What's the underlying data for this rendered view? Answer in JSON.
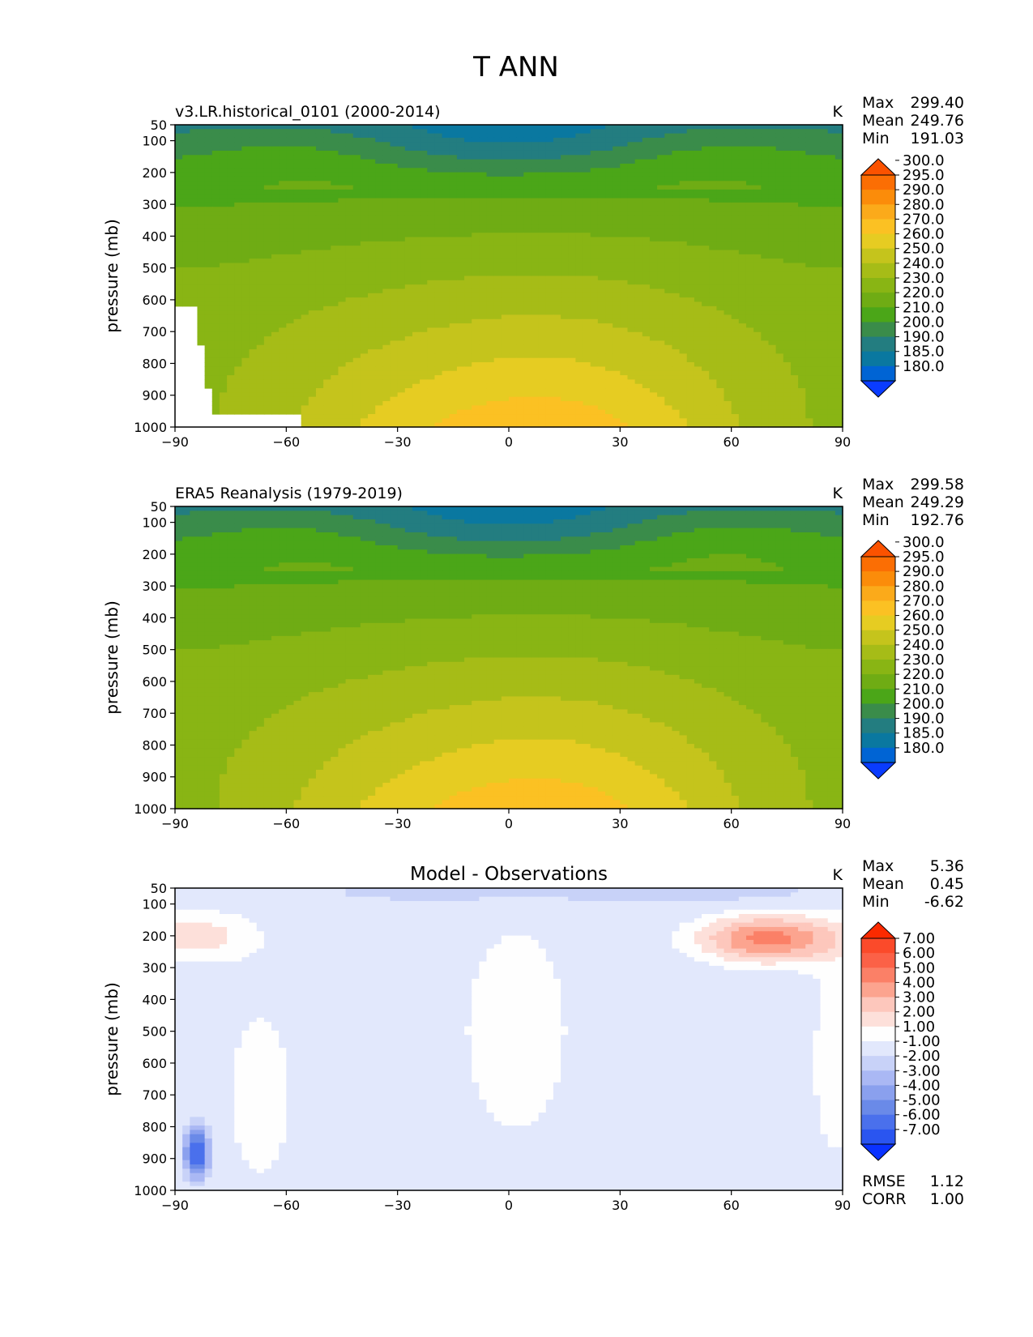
{
  "figure": {
    "title": "T ANN"
  },
  "chart_data": [
    {
      "type": "contour",
      "title": "v3.LR.historical_0101 (2000-2014)",
      "units": "K",
      "xlabel": "",
      "ylabel": "pressure (mb)",
      "xlim": [
        -90,
        90
      ],
      "ylim": [
        1000,
        50
      ],
      "xticks": [
        "−90",
        "−60",
        "−30",
        "0",
        "30",
        "60",
        "90"
      ],
      "yticks": [
        "50",
        "100",
        "200",
        "300",
        "400",
        "500",
        "600",
        "700",
        "800",
        "900",
        "1000"
      ],
      "stats": {
        "max_label": "Max",
        "max": "299.40",
        "mean_label": "Mean",
        "mean": "249.76",
        "min_label": "Min",
        "min": "191.03"
      },
      "field": {
        "kind": "temperature",
        "peak": 299.4,
        "min": 191.03,
        "missing_topography": true
      },
      "colorbar": {
        "levels": [
          180,
          185,
          190,
          200,
          210,
          220,
          230,
          240,
          250,
          260,
          270,
          280,
          290,
          295,
          300
        ],
        "labels": [
          "180.0",
          "185.0",
          "190.0",
          "200.0",
          "210.0",
          "220.0",
          "230.0",
          "240.0",
          "250.0",
          "260.0",
          "270.0",
          "280.0",
          "290.0",
          "295.0",
          "300.0"
        ],
        "colors": [
          "#0a3cff",
          "#0064d4",
          "#0a78a0",
          "#237d80",
          "#3a8c4a",
          "#4ba618",
          "#6fac14",
          "#89b514",
          "#a6bc17",
          "#c5c41c",
          "#e6cc22",
          "#fbc123",
          "#fbaa1a",
          "#fb8c0a",
          "#fb6e04",
          "#fb5200"
        ],
        "extend": "both"
      }
    },
    {
      "type": "contour",
      "title": "ERA5 Reanalysis (1979-2019)",
      "units": "K",
      "xlabel": "",
      "ylabel": "pressure (mb)",
      "xlim": [
        -90,
        90
      ],
      "ylim": [
        1000,
        50
      ],
      "xticks": [
        "−90",
        "−60",
        "−30",
        "0",
        "30",
        "60",
        "90"
      ],
      "yticks": [
        "50",
        "100",
        "200",
        "300",
        "400",
        "500",
        "600",
        "700",
        "800",
        "900",
        "1000"
      ],
      "stats": {
        "max_label": "Max",
        "max": "299.58",
        "mean_label": "Mean",
        "mean": "249.29",
        "min_label": "Min",
        "min": "192.76"
      },
      "field": {
        "kind": "temperature",
        "peak": 299.58,
        "min": 192.76,
        "missing_topography": false
      },
      "colorbar": {
        "levels": [
          180,
          185,
          190,
          200,
          210,
          220,
          230,
          240,
          250,
          260,
          270,
          280,
          290,
          295,
          300
        ],
        "labels": [
          "180.0",
          "185.0",
          "190.0",
          "200.0",
          "210.0",
          "220.0",
          "230.0",
          "240.0",
          "250.0",
          "260.0",
          "270.0",
          "280.0",
          "290.0",
          "295.0",
          "300.0"
        ],
        "colors": [
          "#0a3cff",
          "#0064d4",
          "#0a78a0",
          "#237d80",
          "#3a8c4a",
          "#4ba618",
          "#6fac14",
          "#89b514",
          "#a6bc17",
          "#c5c41c",
          "#e6cc22",
          "#fbc123",
          "#fbaa1a",
          "#fb8c0a",
          "#fb6e04",
          "#fb5200"
        ],
        "extend": "both"
      }
    },
    {
      "type": "contour",
      "title": "Model - Observations",
      "units": "K",
      "xlabel": "",
      "ylabel": "pressure (mb)",
      "xlim": [
        -90,
        90
      ],
      "ylim": [
        1000,
        50
      ],
      "xticks": [
        "−90",
        "−60",
        "−30",
        "0",
        "30",
        "60",
        "90"
      ],
      "yticks": [
        "50",
        "100",
        "200",
        "300",
        "400",
        "500",
        "600",
        "700",
        "800",
        "900",
        "1000"
      ],
      "stats": {
        "max_label": "Max",
        "max": "5.36",
        "mean_label": "Mean",
        "mean": "0.45",
        "min_label": "Min",
        "min": "-6.62",
        "rmse_label": "RMSE",
        "rmse": "1.12",
        "corr_label": "CORR",
        "corr": "1.00"
      },
      "field": {
        "kind": "difference"
      },
      "colorbar": {
        "levels": [
          -7,
          -6,
          -5,
          -4,
          -3,
          -2,
          -1,
          1,
          2,
          3,
          4,
          5,
          6,
          7
        ],
        "labels": [
          "-7.00",
          "-6.00",
          "-5.00",
          "-4.00",
          "-3.00",
          "-2.00",
          "-1.00",
          "1.00",
          "2.00",
          "3.00",
          "4.00",
          "5.00",
          "6.00",
          "7.00"
        ],
        "colors": [
          "#0a32ff",
          "#2a55f0",
          "#4a70ec",
          "#6a8ae8",
          "#8aa0ee",
          "#aab8f4",
          "#c8d2f8",
          "#e2e8fc",
          "#fefefe",
          "#fde0da",
          "#fdc7bc",
          "#fca48f",
          "#fb8067",
          "#fb6147",
          "#fb4a2a",
          "#fb2a00"
        ],
        "extend": "both"
      }
    }
  ]
}
